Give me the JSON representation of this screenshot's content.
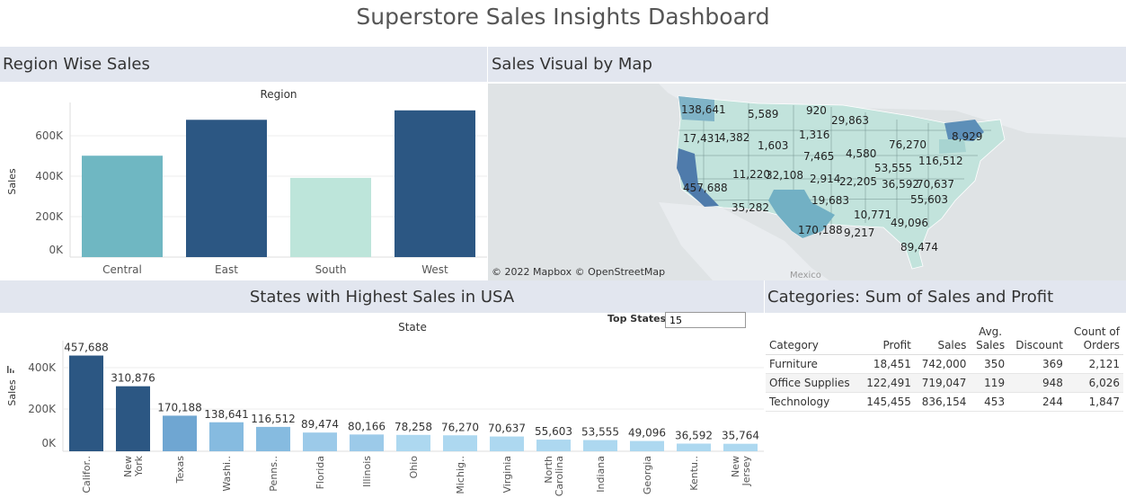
{
  "dashboard": {
    "title": "Superstore Sales Insights Dashboard"
  },
  "region_section": {
    "label": "Region Wise Sales",
    "header": "Region",
    "ylabel": "Sales",
    "yticks": [
      "600K",
      "400K",
      "200K",
      "0K"
    ]
  },
  "map_section": {
    "label": "Sales Visual by Map",
    "attribution": "© 2022 Mapbox  © OpenStreetMap",
    "country_label": "Mexico",
    "state_values": [
      "138,641",
      "5,589",
      "920",
      "29,863",
      "17,431",
      "4,382",
      "1,316",
      "1,603",
      "7,465",
      "4,580",
      "76,270",
      "8,929",
      "11,220",
      "32,108",
      "2,914",
      "22,205",
      "53,555",
      "116,512",
      "457,688",
      "36,592",
      "70,637",
      "19,683",
      "55,603",
      "35,282",
      "10,771",
      "49,096",
      "170,188",
      "9,217",
      "89,474"
    ]
  },
  "states_section": {
    "label": "States with Highest Sales in USA",
    "header": "State",
    "ylabel": "Sales",
    "yticks": [
      "400K",
      "200K",
      "0K"
    ],
    "top_states_label": "Top States",
    "top_states_value": "15"
  },
  "categories_section": {
    "label": "Categories: Sum of Sales and Profit",
    "columns": [
      "Category",
      "Profit",
      "Sales",
      "Avg.\nSales",
      "Discount",
      "Count of\nOrders"
    ],
    "rows": [
      [
        "Furniture",
        "18,451",
        "742,000",
        "350",
        "369",
        "2,121"
      ],
      [
        "Office Supplies",
        "122,491",
        "719,047",
        "119",
        "948",
        "6,026"
      ],
      [
        "Technology",
        "145,455",
        "836,154",
        "453",
        "244",
        "1,847"
      ]
    ]
  },
  "chart_data": [
    {
      "type": "bar",
      "title": "Region Wise Sales",
      "xlabel": "Region",
      "ylabel": "Sales",
      "categories": [
        "Central",
        "East",
        "South",
        "West"
      ],
      "values": [
        501240,
        678781,
        391722,
        725458
      ],
      "ylim": [
        0,
        800000
      ],
      "colors": [
        "#6fb7c2",
        "#2c5783",
        "#bde5da",
        "#2c5783"
      ],
      "grid": true
    },
    {
      "type": "bar",
      "title": "States with Highest Sales in USA",
      "xlabel": "State",
      "ylabel": "Sales",
      "categories": [
        "Califor..",
        "New York",
        "Texas",
        "Washi..",
        "Penns..",
        "Florida",
        "Illinois",
        "Ohio",
        "Michig..",
        "Virginia",
        "North Carolina",
        "Indiana",
        "Georgia",
        "Kentu..",
        "New Jersey"
      ],
      "values": [
        457688,
        310876,
        170188,
        138641,
        116512,
        89474,
        80166,
        78258,
        76270,
        70637,
        55603,
        53555,
        49096,
        36592,
        35764
      ],
      "data_labels": [
        "457,688",
        "310,876",
        "170,188",
        "138,641",
        "116,512",
        "89,474",
        "80,166",
        "78,258",
        "76,270",
        "70,637",
        "55,603",
        "53,555",
        "49,096",
        "36,592",
        "35,764"
      ],
      "ylim": [
        0,
        460000
      ],
      "grid": true
    }
  ]
}
